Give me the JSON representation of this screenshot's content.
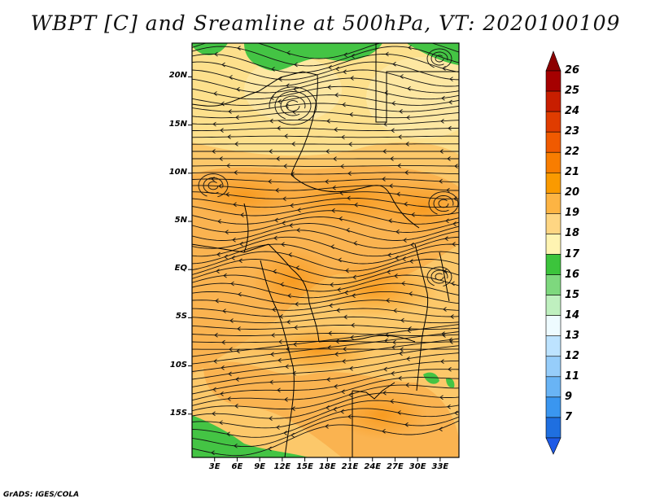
{
  "title": "WBPT [C] and Sreamline at 500hPa, VT: 2020100109",
  "credit": "GrADS: IGES/COLA",
  "map": {
    "lon_range": [
      0,
      35.5
    ],
    "lat_range": [
      -19.5,
      23.5
    ],
    "lat_ticks": [
      {
        "label": "20N",
        "value": 20
      },
      {
        "label": "15N",
        "value": 15
      },
      {
        "label": "10N",
        "value": 10
      },
      {
        "label": "5N",
        "value": 5
      },
      {
        "label": "EQ",
        "value": 0
      },
      {
        "label": "5S",
        "value": -5
      },
      {
        "label": "10S",
        "value": -10
      },
      {
        "label": "15S",
        "value": -15
      }
    ],
    "lon_ticks": [
      {
        "label": "3E",
        "value": 3
      },
      {
        "label": "6E",
        "value": 6
      },
      {
        "label": "9E",
        "value": 9
      },
      {
        "label": "12E",
        "value": 12
      },
      {
        "label": "15E",
        "value": 15
      },
      {
        "label": "18E",
        "value": 18
      },
      {
        "label": "21E",
        "value": 21
      },
      {
        "label": "24E",
        "value": 24
      },
      {
        "label": "27E",
        "value": 27
      },
      {
        "label": "30E",
        "value": 30
      },
      {
        "label": "33E",
        "value": 33
      }
    ],
    "field_color_default": "#fde08c"
  },
  "colorbar": {
    "labels": [
      "26",
      "25",
      "24",
      "23",
      "22",
      "21",
      "20",
      "19",
      "18",
      "17",
      "16",
      "15",
      "14",
      "13",
      "12",
      "11",
      "9",
      "7"
    ],
    "colors": [
      "#a50000",
      "#c81e00",
      "#e03c00",
      "#f05a00",
      "#f87d00",
      "#fa9a00",
      "#fdb443",
      "#fed683",
      "#fff4b2",
      "#3cc43c",
      "#7ed87e",
      "#bff0bf",
      "#eefbff",
      "#bde3ff",
      "#96cdfa",
      "#69b4f5",
      "#3a96f0",
      "#1f6fe0"
    ],
    "top_arrow_color": "#8c0000",
    "bottom_arrow_color": "#1e5ae6"
  }
}
